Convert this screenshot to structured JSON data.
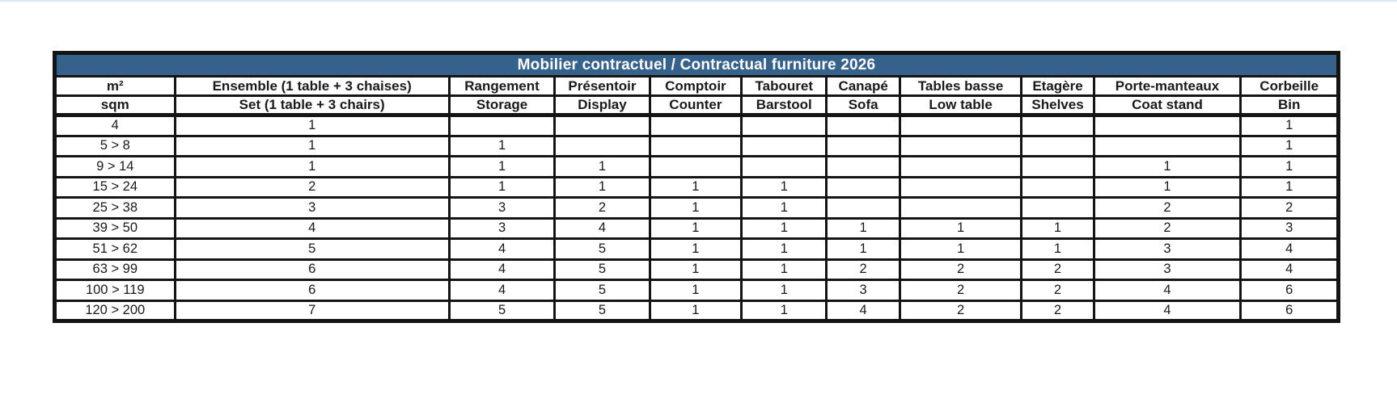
{
  "window": {
    "background": "#ffffff",
    "top_edge_color": "#d9e9f6"
  },
  "table": {
    "title": "Mobilier contractuel / Contractual furniture 2026",
    "title_bg": "#35618a",
    "title_text_color": "#ffffff",
    "border_color": "#141414",
    "columns": [
      {
        "fr": "m²",
        "en": "sqm"
      },
      {
        "fr": "Ensemble (1 table + 3 chaises)",
        "en": "Set (1 table + 3 chairs)"
      },
      {
        "fr": "Rangement",
        "en": "Storage"
      },
      {
        "fr": "Présentoir",
        "en": "Display"
      },
      {
        "fr": "Comptoir",
        "en": "Counter"
      },
      {
        "fr": "Tabouret",
        "en": "Barstool"
      },
      {
        "fr": "Canapé",
        "en": "Sofa"
      },
      {
        "fr": "Tables basse",
        "en": "Low table"
      },
      {
        "fr": "Etagère",
        "en": "Shelves"
      },
      {
        "fr": "Porte-manteaux",
        "en": "Coat stand"
      },
      {
        "fr": "Corbeille",
        "en": "Bin"
      }
    ],
    "rows": [
      {
        "label": "4",
        "values": [
          "1",
          "",
          "",
          "",
          "",
          "",
          "",
          "",
          "",
          "1"
        ]
      },
      {
        "label": "5 > 8",
        "values": [
          "1",
          "1",
          "",
          "",
          "",
          "",
          "",
          "",
          "",
          "1"
        ]
      },
      {
        "label": "9 > 14",
        "values": [
          "1",
          "1",
          "1",
          "",
          "",
          "",
          "",
          "",
          "1",
          "1"
        ]
      },
      {
        "label": "15 > 24",
        "values": [
          "2",
          "1",
          "1",
          "1",
          "1",
          "",
          "",
          "",
          "1",
          "1"
        ]
      },
      {
        "label": "25 > 38",
        "values": [
          "3",
          "3",
          "2",
          "1",
          "1",
          "",
          "",
          "",
          "2",
          "2"
        ]
      },
      {
        "label": "39 > 50",
        "values": [
          "4",
          "3",
          "4",
          "1",
          "1",
          "1",
          "1",
          "1",
          "2",
          "3"
        ]
      },
      {
        "label": "51 > 62",
        "values": [
          "5",
          "4",
          "5",
          "1",
          "1",
          "1",
          "1",
          "1",
          "3",
          "4"
        ]
      },
      {
        "label": "63 > 99",
        "values": [
          "6",
          "4",
          "5",
          "1",
          "1",
          "2",
          "2",
          "2",
          "3",
          "4"
        ]
      },
      {
        "label": "100 > 119",
        "values": [
          "6",
          "4",
          "5",
          "1",
          "1",
          "3",
          "2",
          "2",
          "4",
          "6"
        ]
      },
      {
        "label": "120 > 200",
        "values": [
          "7",
          "5",
          "5",
          "1",
          "1",
          "4",
          "2",
          "2",
          "4",
          "6"
        ]
      }
    ]
  }
}
